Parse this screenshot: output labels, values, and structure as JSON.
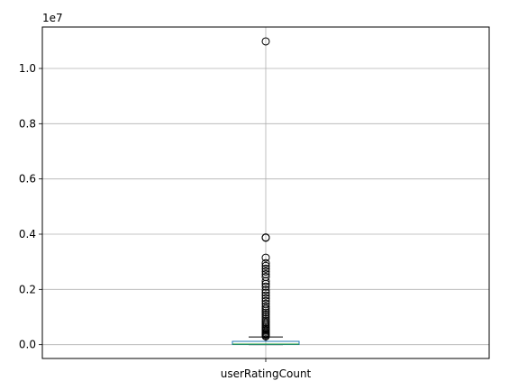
{
  "chart_data": {
    "type": "box",
    "categories": [
      "userRatingCount"
    ],
    "x_tick_labels": [
      "userRatingCount"
    ],
    "y_tick_labels": [
      "0.0",
      "0.2",
      "0.4",
      "0.6",
      "0.8",
      "1.0"
    ],
    "y_ticks": [
      0,
      2000000,
      4000000,
      6000000,
      8000000,
      10000000
    ],
    "y_offset_label": "1e7",
    "ylim": [
      -500000,
      11500000
    ],
    "grid": true,
    "box": {
      "min": 0,
      "q1": 5000,
      "median": 20000,
      "q3": 120000,
      "whisker_high": 280000,
      "outliers": [
        10980000,
        3880000,
        3870000,
        3150000,
        2950000,
        2850000,
        2750000,
        2650000,
        2550000,
        2450000,
        2300000,
        2200000,
        2100000,
        1980000,
        1880000,
        1780000,
        1680000,
        1580000,
        1480000,
        1380000,
        1300000,
        1230000,
        1160000,
        1080000,
        1000000,
        930000,
        860000,
        800000,
        740000,
        680000,
        620000,
        570000,
        520000,
        470000,
        420000,
        380000,
        340000,
        300000
      ]
    },
    "colors": {
      "box": "#1f77b4",
      "median": "#2ca02c",
      "grid": "#b0b0b0",
      "outlier_edge": "#000000"
    }
  }
}
